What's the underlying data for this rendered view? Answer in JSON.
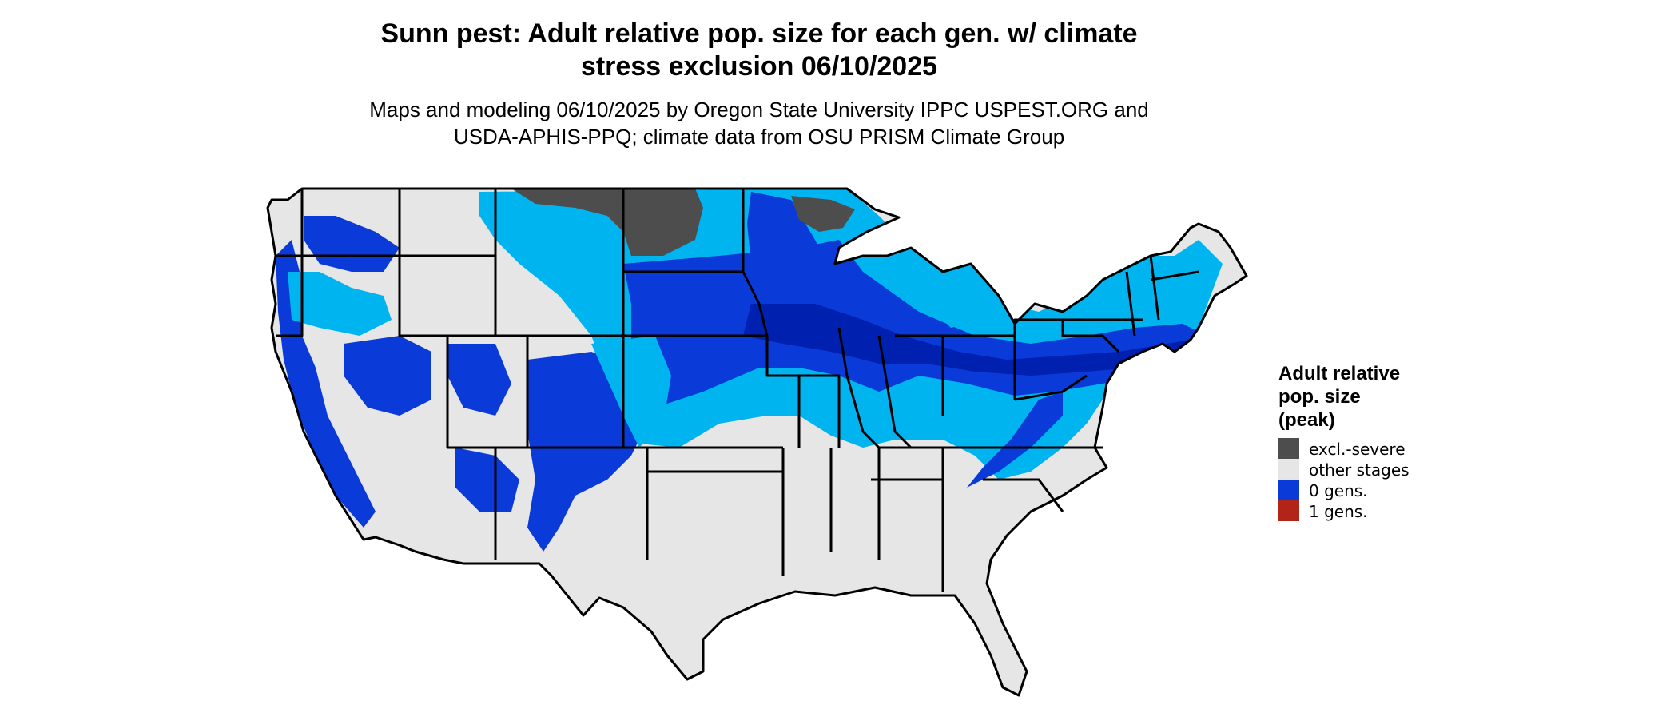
{
  "title_line1": "Sunn pest: Adult relative pop. size for each gen. w/ climate",
  "title_line2": "stress exclusion 06/10/2025",
  "subtitle_line1": "Maps and modeling 06/10/2025 by Oregon State University IPPC USPEST.ORG and",
  "subtitle_line2": "USDA-APHIS-PPQ; climate data from OSU PRISM Climate Group",
  "legend": {
    "title": [
      "Adult relative",
      "pop. size",
      "(peak)"
    ],
    "items": [
      {
        "label": "excl.-severe",
        "color": "#4d4d4d"
      },
      {
        "label": "other stages",
        "color": "#e6e6e6"
      },
      {
        "label": "0 gens.",
        "color": "#0a3bd9"
      },
      {
        "label": "1 gens.",
        "color": "#b22418"
      }
    ]
  },
  "colors": {
    "land": "#e6e6e6",
    "light_blue": "#00b4f0",
    "mid_blue": "#0a3bd9",
    "dark_blue": "#0020b0",
    "excluded": "#4d4d4d",
    "border": "#000000"
  }
}
